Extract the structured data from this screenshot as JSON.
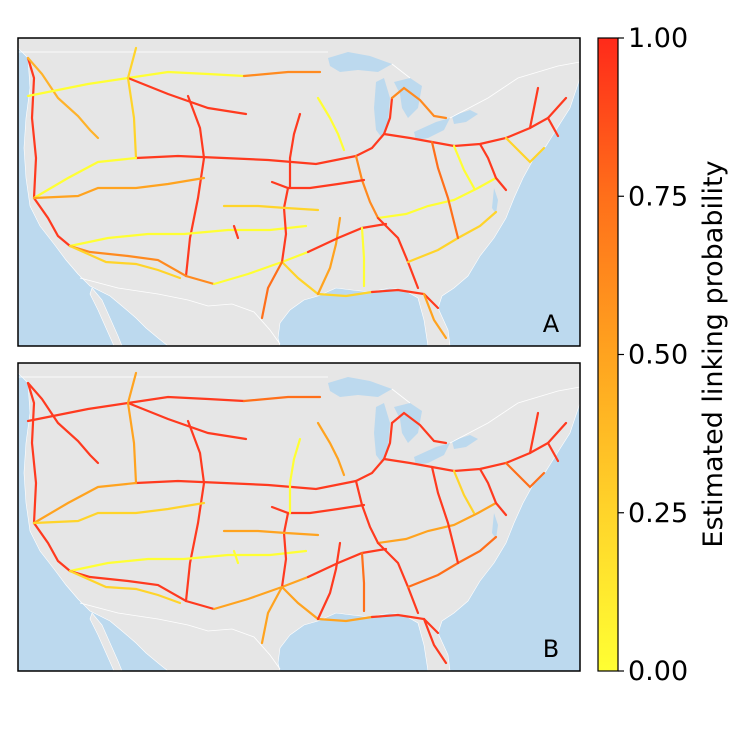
{
  "panels": [
    {
      "id": "A",
      "label": "A"
    },
    {
      "id": "B",
      "label": "B"
    }
  ],
  "colorbar": {
    "label": "Estimated linking probability",
    "ticks": [
      "1.00",
      "0.75",
      "0.50",
      "0.25",
      "0.00"
    ],
    "tick_values": [
      1.0,
      0.75,
      0.5,
      0.25,
      0.0
    ],
    "range": [
      0,
      1
    ],
    "colormap": [
      "#ffff33",
      "#ffd42a",
      "#ffa31f",
      "#ff6f1a",
      "#ff2a1a"
    ]
  },
  "colors": {
    "land": "#e6e6e6",
    "water": "#bcd9ee",
    "border": "#ffffff",
    "frame": "#000000"
  }
}
